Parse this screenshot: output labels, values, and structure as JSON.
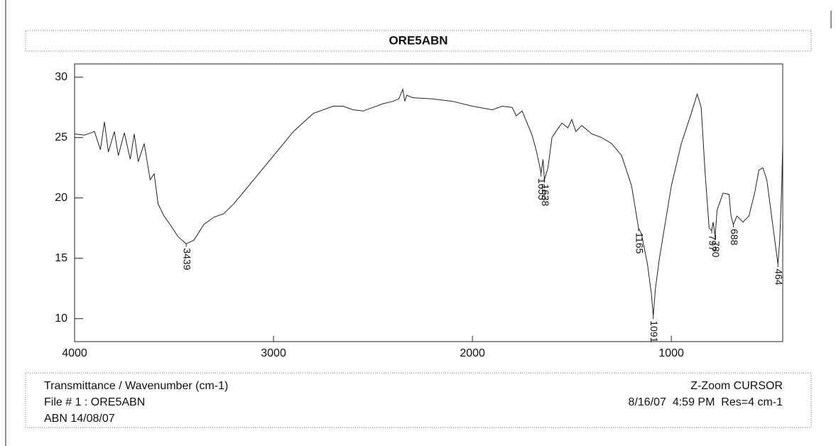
{
  "chart_data": {
    "type": "line",
    "title": "ORE5ABN",
    "footer_left": [
      "Transmittance / Wavenumber (cm-1)",
      "File # 1 : ORE5ABN",
      "ABN 14/08/07"
    ],
    "footer_right": [
      "Z-Zoom CURSOR",
      "8/16/07  4:59 PM  Res=4 cm-1"
    ],
    "xlim": [
      4000,
      440
    ],
    "ylim": [
      8.1,
      31.1
    ],
    "xticks": [
      4000,
      3000,
      2000,
      1000
    ],
    "yticks": [
      10,
      15,
      20,
      25,
      30
    ],
    "series": [
      {
        "color": "#222",
        "x": [
          4000,
          3950,
          3900,
          3870,
          3850,
          3830,
          3800,
          3780,
          3750,
          3720,
          3700,
          3680,
          3650,
          3620,
          3600,
          3580,
          3550,
          3520,
          3480,
          3439,
          3400,
          3350,
          3300,
          3250,
          3200,
          3100,
          3000,
          2900,
          2800,
          2700,
          2650,
          2600,
          2550,
          2500,
          2450,
          2400,
          2370,
          2350,
          2340,
          2330,
          2300,
          2200,
          2100,
          2000,
          1900,
          1850,
          1800,
          1780,
          1750,
          1720,
          1700,
          1680,
          1660,
          1655,
          1645,
          1638,
          1620,
          1600,
          1580,
          1550,
          1520,
          1500,
          1480,
          1450,
          1400,
          1350,
          1300,
          1250,
          1200,
          1165,
          1150,
          1120,
          1100,
          1091,
          1080,
          1060,
          1000,
          950,
          900,
          870,
          850,
          830,
          810,
          797,
          790,
          780,
          770,
          740,
          710,
          700,
          688,
          670,
          640,
          610,
          580,
          560,
          540,
          520,
          500,
          480,
          464,
          455,
          445,
          440
        ],
        "values": [
          25.3,
          25.2,
          25.5,
          24.0,
          26.3,
          23.8,
          25.5,
          23.5,
          25.4,
          23.2,
          25.3,
          23.0,
          24.5,
          21.5,
          22.0,
          19.5,
          18.5,
          17.8,
          16.8,
          16.2,
          16.5,
          17.8,
          18.4,
          18.7,
          19.5,
          21.5,
          23.5,
          25.5,
          27.0,
          27.6,
          27.6,
          27.3,
          27.2,
          27.5,
          27.8,
          28.0,
          28.2,
          29.0,
          28.0,
          28.5,
          28.3,
          28.2,
          28.0,
          27.6,
          27.3,
          27.6,
          27.5,
          26.8,
          27.2,
          26.0,
          25.2,
          24.0,
          22.5,
          22.0,
          23.2,
          21.5,
          22.5,
          25.0,
          25.5,
          26.2,
          25.8,
          26.5,
          25.5,
          26.0,
          25.3,
          25.0,
          24.5,
          23.5,
          21.0,
          17.5,
          17.0,
          14.5,
          12.0,
          10.2,
          12.5,
          15.0,
          21.0,
          24.5,
          27.0,
          28.6,
          27.5,
          22.0,
          17.5,
          17.3,
          18.0,
          16.8,
          19.0,
          20.4,
          20.3,
          18.5,
          17.8,
          18.5,
          18.0,
          18.5,
          20.5,
          22.3,
          22.5,
          21.5,
          19.0,
          16.5,
          14.5,
          16.5,
          21.0,
          24.5
        ]
      }
    ],
    "peaks": [
      {
        "x": 3439,
        "y": 16.2
      },
      {
        "x": 1655,
        "y": 22.0
      },
      {
        "x": 1638,
        "y": 21.5
      },
      {
        "x": 1165,
        "y": 17.5
      },
      {
        "x": 1091,
        "y": 10.2
      },
      {
        "x": 797,
        "y": 17.3
      },
      {
        "x": 780,
        "y": 16.8
      },
      {
        "x": 688,
        "y": 17.8
      },
      {
        "x": 464,
        "y": 14.5
      }
    ]
  }
}
